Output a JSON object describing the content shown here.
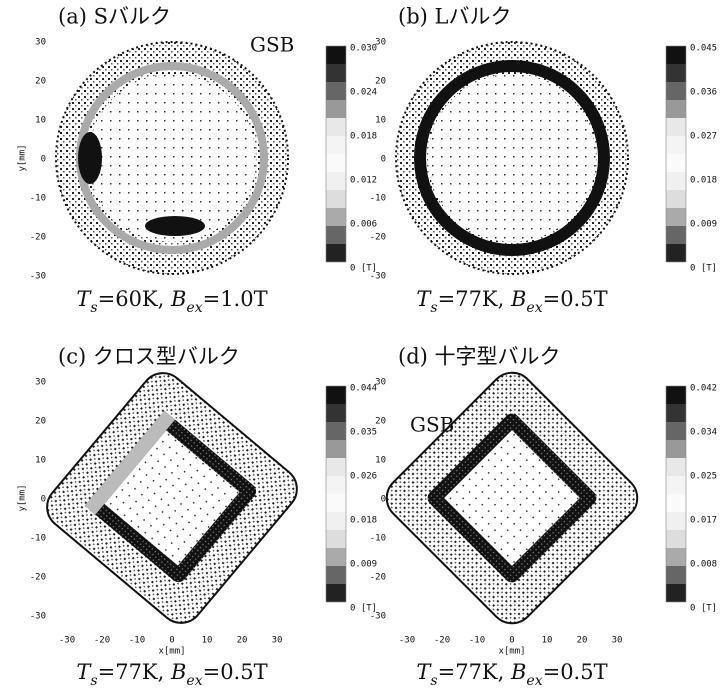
{
  "panels": [
    {
      "label": "(a) Sバルク",
      "annotation": "GSB",
      "y_axis_label": "y[mm]",
      "condition": [
        "T",
        "s",
        "=60K, ",
        "B",
        "ex",
        "=1.0T"
      ],
      "colorbar_labels": [
        "0.030",
        "0.024",
        "0.018",
        "0.012",
        "0.006",
        "0 [T]"
      ]
    },
    {
      "label": "(b) Lバルク",
      "condition": [
        "T",
        "s",
        "=77K, ",
        "B",
        "ex",
        "=0.5T"
      ],
      "colorbar_labels": [
        "0.045",
        "0.036",
        "0.027",
        "0.018",
        "0.009",
        "0 [T]"
      ]
    },
    {
      "label": "(c) クロス型バルク",
      "y_axis_label": "y[mm]",
      "x_axis_label": "x[mm]",
      "condition": [
        "T",
        "s",
        "=77K, ",
        "B",
        "ex",
        "=0.5T"
      ],
      "colorbar_labels": [
        "0.044",
        "0.035",
        "0.026",
        "0.018",
        "0.009",
        "0 [T]"
      ]
    },
    {
      "label": "(d) 十字型バルク",
      "annotation": "GSB",
      "x_axis_label": "x[mm]",
      "condition": [
        "T",
        "s",
        "=77K, ",
        "B",
        "ex",
        "=0.5T"
      ],
      "colorbar_labels": [
        "0.042",
        "0.034",
        "0.025",
        "0.017",
        "0.008",
        "0 [T]"
      ]
    }
  ],
  "y_ticks": [
    "30",
    "20",
    "10",
    "0",
    "-10",
    "-20",
    "-30"
  ],
  "x_ticks": [
    "-30",
    "-20",
    "-10",
    "0",
    "10",
    "20",
    "30"
  ]
}
